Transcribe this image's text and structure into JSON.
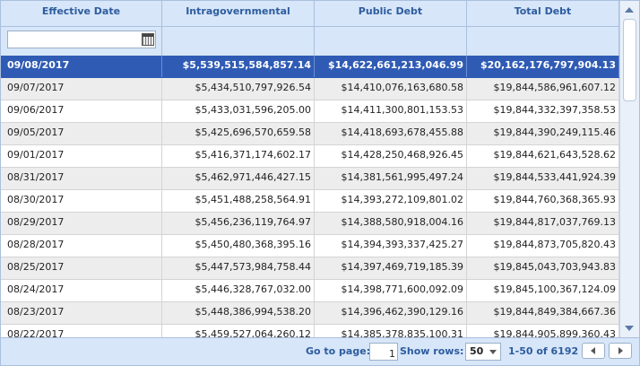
{
  "columns": {
    "date": "Effective Date",
    "intragov": "Intragovernmental Holdings",
    "public": "Public Debt",
    "total": "Total Debt"
  },
  "filter": {
    "date_value": "",
    "calendar_icon": "calendar-icon"
  },
  "rows": [
    {
      "date": "09/08/2017",
      "intragov": "$5,539,515,584,857.14",
      "public": "$14,622,661,213,046.99",
      "total": "$20,162,176,797,904.13"
    },
    {
      "date": "09/07/2017",
      "intragov": "$5,434,510,797,926.54",
      "public": "$14,410,076,163,680.58",
      "total": "$19,844,586,961,607.12"
    },
    {
      "date": "09/06/2017",
      "intragov": "$5,433,031,596,205.00",
      "public": "$14,411,300,801,153.53",
      "total": "$19,844,332,397,358.53"
    },
    {
      "date": "09/05/2017",
      "intragov": "$5,425,696,570,659.58",
      "public": "$14,418,693,678,455.88",
      "total": "$19,844,390,249,115.46"
    },
    {
      "date": "09/01/2017",
      "intragov": "$5,416,371,174,602.17",
      "public": "$14,428,250,468,926.45",
      "total": "$19,844,621,643,528.62"
    },
    {
      "date": "08/31/2017",
      "intragov": "$5,462,971,446,427.15",
      "public": "$14,381,561,995,497.24",
      "total": "$19,844,533,441,924.39"
    },
    {
      "date": "08/30/2017",
      "intragov": "$5,451,488,258,564.91",
      "public": "$14,393,272,109,801.02",
      "total": "$19,844,760,368,365.93"
    },
    {
      "date": "08/29/2017",
      "intragov": "$5,456,236,119,764.97",
      "public": "$14,388,580,918,004.16",
      "total": "$19,844,817,037,769.13"
    },
    {
      "date": "08/28/2017",
      "intragov": "$5,450,480,368,395.16",
      "public": "$14,394,393,337,425.27",
      "total": "$19,844,873,705,820.43"
    },
    {
      "date": "08/25/2017",
      "intragov": "$5,447,573,984,758.44",
      "public": "$14,397,469,719,185.39",
      "total": "$19,845,043,703,943.83"
    },
    {
      "date": "08/24/2017",
      "intragov": "$5,446,328,767,032.00",
      "public": "$14,398,771,600,092.09",
      "total": "$19,845,100,367,124.09"
    },
    {
      "date": "08/23/2017",
      "intragov": "$5,448,386,994,538.20",
      "public": "$14,396,462,390,129.16",
      "total": "$19,844,849,384,667.36"
    },
    {
      "date": "08/22/2017",
      "intragov": "$5,459,527,064,260.12",
      "public": "$14,385,378,835,100.31",
      "total": "$19,844,905,899,360.43"
    }
  ],
  "selected_row": 0,
  "pager": {
    "goto_label": "Go to page:",
    "page_value": "1",
    "show_rows_label": "Show rows:",
    "rows_per_page": "50",
    "range_text": "1-50 of 6192"
  },
  "colors": {
    "header_bg": "#d7e6f9",
    "header_text": "#2d5c9e",
    "selected_row": "#2f5bb5",
    "alt_row": "#ededed"
  }
}
